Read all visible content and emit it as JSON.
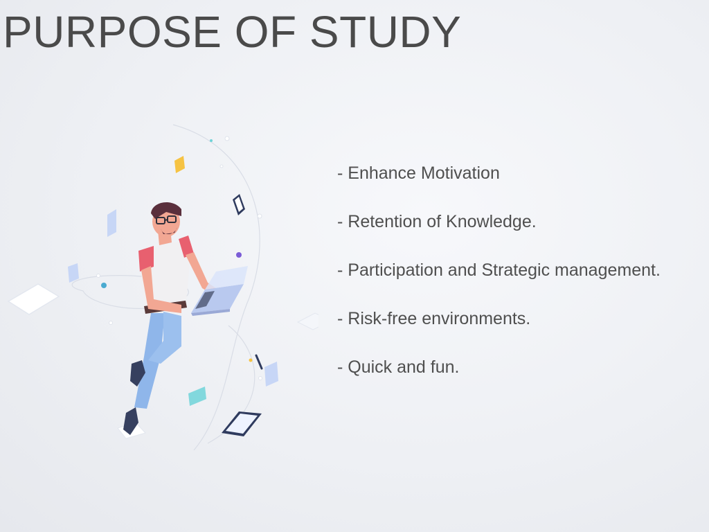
{
  "slide": {
    "title": "PURPOSE OF STUDY",
    "bullets": [
      "- Enhance Motivation",
      "- Retention of Knowledge.",
      "- Participation and Strategic management.",
      "- Risk-free environments.",
      "- Quick and fun."
    ]
  },
  "illustration": {
    "icon": "person-with-laptop-illustration",
    "colors": {
      "shirt": "#f1f0f2",
      "sleeves": "#e8606f",
      "jeans": "#8fb6ea",
      "hair": "#5a2f3c",
      "skin": "#f2a793",
      "laptop": "#b9c9ef",
      "accent_yellow": "#f6c343",
      "accent_teal": "#6fd3d8",
      "accent_purple": "#7b5cd6"
    }
  }
}
